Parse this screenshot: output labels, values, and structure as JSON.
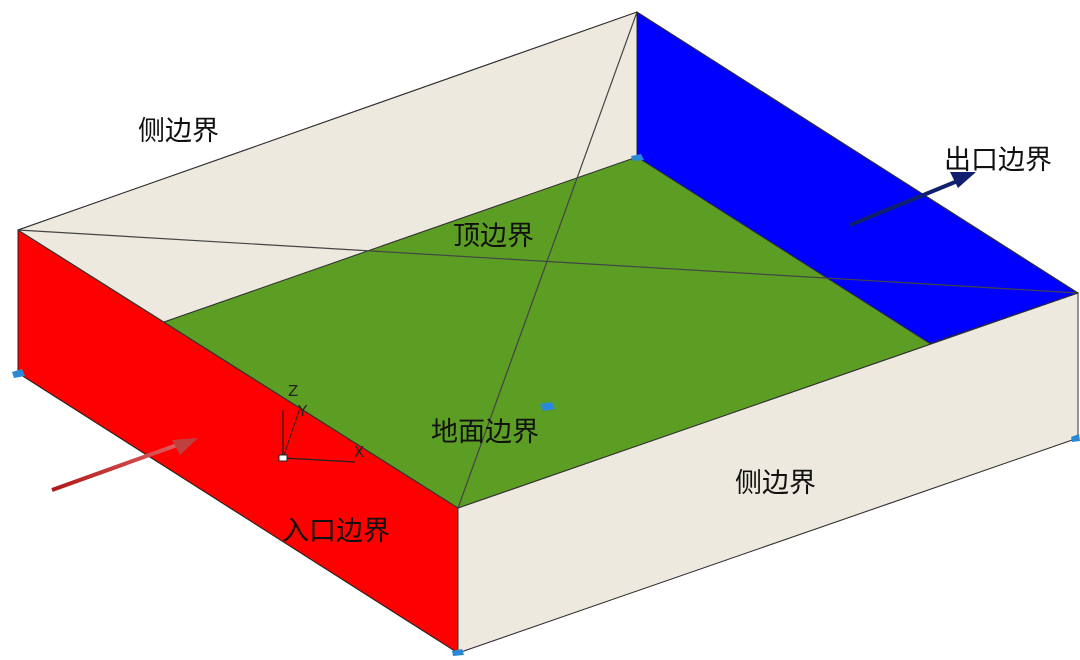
{
  "labels": {
    "side_top": "侧边界",
    "side_bottom": "侧边界",
    "outlet": "出口边界",
    "top": "顶边界",
    "ground": "地面边界",
    "inlet": "入口边界"
  },
  "axes": {
    "z": "Z",
    "y": "Y",
    "x": "X"
  },
  "colors": {
    "inlet": "#ff0000",
    "outlet": "#0000ff",
    "ground": "#5c9e24",
    "side": "#ede9de",
    "inlet_arrow": "#b01818",
    "outlet_arrow": "#10206e"
  }
}
